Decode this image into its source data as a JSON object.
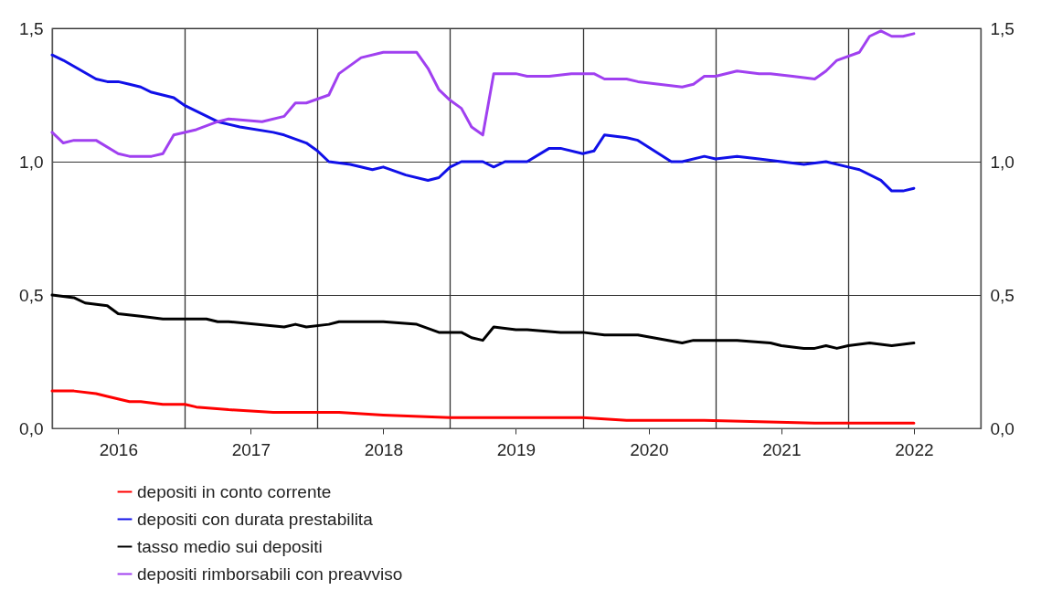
{
  "chart_data": {
    "type": "line",
    "xlim": [
      "2016-01",
      "2023-01"
    ],
    "xticks": [
      {
        "value": "2016-01",
        "label": null
      },
      {
        "value": "2016-07",
        "label": "2016"
      },
      {
        "value": "2017-01",
        "label": null
      },
      {
        "value": "2017-07",
        "label": "2017"
      },
      {
        "value": "2018-01",
        "label": null
      },
      {
        "value": "2018-07",
        "label": "2018"
      },
      {
        "value": "2019-01",
        "label": null
      },
      {
        "value": "2019-07",
        "label": "2019"
      },
      {
        "value": "2020-01",
        "label": null
      },
      {
        "value": "2020-07",
        "label": "2020"
      },
      {
        "value": "2021-01",
        "label": null
      },
      {
        "value": "2021-07",
        "label": "2021"
      },
      {
        "value": "2022-01",
        "label": null
      },
      {
        "value": "2022-07",
        "label": "2022"
      },
      {
        "value": "2023-01",
        "label": null
      }
    ],
    "ylim": [
      0,
      1.5
    ],
    "yticks": [
      {
        "value": 0,
        "label": "0,0"
      },
      {
        "value": 0.5,
        "label": "0,5"
      },
      {
        "value": 1,
        "label": "1,0"
      },
      {
        "value": 1.5,
        "label": "1,5"
      }
    ],
    "y2lim": [
      0,
      1.5
    ],
    "y2ticks": [
      {
        "value": 0,
        "label": "0,0"
      },
      {
        "value": 0.5,
        "label": "0,5"
      },
      {
        "value": 1,
        "label": "1,0"
      },
      {
        "value": 1.5,
        "label": "1,5"
      }
    ],
    "grid": true,
    "legend": "bottom",
    "series": [
      {
        "name": "depositi in conto corrente",
        "color": "#ff0000",
        "x": [
          "2016-01",
          "2016-03",
          "2016-05",
          "2016-06",
          "2016-08",
          "2016-09",
          "2016-11",
          "2017-01",
          "2017-02",
          "2017-05",
          "2017-09",
          "2017-12",
          "2018-03",
          "2018-07",
          "2019-01",
          "2019-04",
          "2019-05",
          "2020-01",
          "2020-05",
          "2020-12",
          "2021-10",
          "2022-07"
        ],
        "values": [
          0.14,
          0.14,
          0.13,
          0.12,
          0.1,
          0.1,
          0.09,
          0.09,
          0.08,
          0.07,
          0.06,
          0.06,
          0.06,
          0.05,
          0.04,
          0.04,
          0.04,
          0.04,
          0.03,
          0.03,
          0.02,
          0.02
        ]
      },
      {
        "name": "depositi con durata prestabilita",
        "color": "#1010e8",
        "x": [
          "2016-01",
          "2016-02",
          "2016-05",
          "2016-06",
          "2016-07",
          "2016-08",
          "2016-09",
          "2016-10",
          "2016-12",
          "2017-01",
          "2017-04",
          "2017-06",
          "2017-09",
          "2017-10",
          "2017-12",
          "2018-01",
          "2018-02",
          "2018-04",
          "2018-06",
          "2018-07",
          "2018-09",
          "2018-11",
          "2018-12",
          "2019-01",
          "2019-02",
          "2019-04",
          "2019-05",
          "2019-06",
          "2019-08",
          "2019-10",
          "2019-11",
          "2020-01",
          "2020-02",
          "2020-03",
          "2020-05",
          "2020-06",
          "2020-09",
          "2020-10",
          "2020-12",
          "2021-01",
          "2021-03",
          "2021-05",
          "2021-07",
          "2021-09",
          "2021-11",
          "2022-01",
          "2022-02",
          "2022-04",
          "2022-05",
          "2022-06",
          "2022-07"
        ],
        "values": [
          1.4,
          1.38,
          1.31,
          1.3,
          1.3,
          1.29,
          1.28,
          1.26,
          1.24,
          1.21,
          1.15,
          1.13,
          1.11,
          1.1,
          1.07,
          1.04,
          1.0,
          0.99,
          0.97,
          0.98,
          0.95,
          0.93,
          0.94,
          0.98,
          1.0,
          1.0,
          0.98,
          1.0,
          1.0,
          1.05,
          1.05,
          1.03,
          1.04,
          1.1,
          1.09,
          1.08,
          1.0,
          1.0,
          1.02,
          1.01,
          1.02,
          1.01,
          1.0,
          0.99,
          1.0,
          0.98,
          0.97,
          0.93,
          0.89,
          0.89,
          0.9
        ]
      },
      {
        "name": "tasso medio sui depositi",
        "color": "#000000",
        "x": [
          "2016-01",
          "2016-03",
          "2016-04",
          "2016-06",
          "2016-07",
          "2016-09",
          "2016-11",
          "2017-01",
          "2017-03",
          "2017-04",
          "2017-05",
          "2017-10",
          "2017-11",
          "2017-12",
          "2018-02",
          "2018-03",
          "2018-05",
          "2018-06",
          "2018-07",
          "2018-10",
          "2018-12",
          "2019-02",
          "2019-03",
          "2019-04",
          "2019-05",
          "2019-07",
          "2019-08",
          "2019-11",
          "2020-01",
          "2020-03",
          "2020-06",
          "2020-10",
          "2020-11",
          "2021-03",
          "2021-06",
          "2021-07",
          "2021-09",
          "2021-10",
          "2021-11",
          "2021-12",
          "2022-01",
          "2022-03",
          "2022-05",
          "2022-07"
        ],
        "values": [
          0.5,
          0.49,
          0.47,
          0.46,
          0.43,
          0.42,
          0.41,
          0.41,
          0.41,
          0.4,
          0.4,
          0.38,
          0.39,
          0.38,
          0.39,
          0.4,
          0.4,
          0.4,
          0.4,
          0.39,
          0.36,
          0.36,
          0.34,
          0.33,
          0.38,
          0.37,
          0.37,
          0.36,
          0.36,
          0.35,
          0.35,
          0.32,
          0.33,
          0.33,
          0.32,
          0.31,
          0.3,
          0.3,
          0.31,
          0.3,
          0.31,
          0.32,
          0.31,
          0.32
        ]
      },
      {
        "name": "depositi rimborsabili con preavviso",
        "color": "#a040f0",
        "x": [
          "2016-01",
          "2016-02",
          "2016-03",
          "2016-05",
          "2016-07",
          "2016-08",
          "2016-10",
          "2016-11",
          "2016-12",
          "2017-02",
          "2017-04",
          "2017-05",
          "2017-08",
          "2017-10",
          "2017-11",
          "2017-12",
          "2018-02",
          "2018-03",
          "2018-05",
          "2018-07",
          "2018-10",
          "2018-11",
          "2018-12",
          "2019-01",
          "2019-02",
          "2019-03",
          "2019-04",
          "2019-05",
          "2019-07",
          "2019-08",
          "2019-10",
          "2019-12",
          "2020-01",
          "2020-02",
          "2020-03",
          "2020-05",
          "2020-06",
          "2020-10",
          "2020-11",
          "2020-12",
          "2021-01",
          "2021-03",
          "2021-05",
          "2021-06",
          "2021-08",
          "2021-10",
          "2021-11",
          "2021-12",
          "2022-02",
          "2022-03",
          "2022-04",
          "2022-05",
          "2022-06",
          "2022-07"
        ],
        "values": [
          1.11,
          1.07,
          1.08,
          1.08,
          1.03,
          1.02,
          1.02,
          1.03,
          1.1,
          1.12,
          1.15,
          1.16,
          1.15,
          1.17,
          1.22,
          1.22,
          1.25,
          1.33,
          1.39,
          1.41,
          1.41,
          1.35,
          1.27,
          1.23,
          1.2,
          1.13,
          1.1,
          1.33,
          1.33,
          1.32,
          1.32,
          1.33,
          1.33,
          1.33,
          1.31,
          1.31,
          1.3,
          1.28,
          1.29,
          1.32,
          1.32,
          1.34,
          1.33,
          1.33,
          1.32,
          1.31,
          1.34,
          1.38,
          1.41,
          1.47,
          1.49,
          1.47,
          1.47,
          1.48
        ]
      }
    ]
  }
}
